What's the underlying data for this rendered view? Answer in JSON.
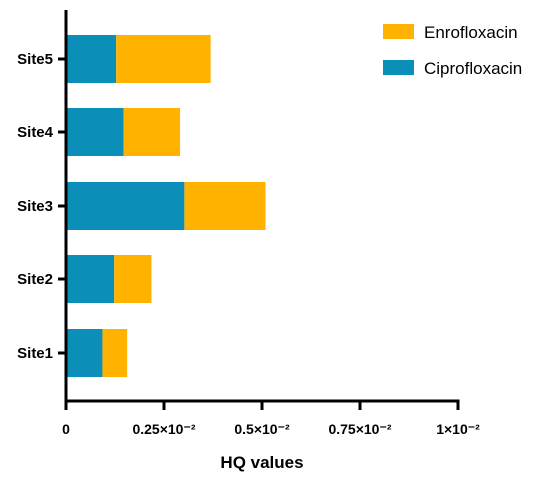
{
  "chart_data": {
    "type": "bar",
    "orientation": "horizontal",
    "stacked": true,
    "categories": [
      "Site1",
      "Site2",
      "Site3",
      "Site4",
      "Site5"
    ],
    "series": [
      {
        "name": "Ciprofloxacin",
        "color": "#0b8fb9",
        "values": [
          0.00093,
          0.00123,
          0.00302,
          0.00147,
          0.00128
        ]
      },
      {
        "name": "Enrofloxacin",
        "color": "#ffb300",
        "values": [
          0.00063,
          0.00095,
          0.00207,
          0.00144,
          0.00241
        ]
      }
    ],
    "xlabel": "HQ values",
    "ylabel": "",
    "xlim": [
      0,
      0.01
    ],
    "xticks": [
      0,
      0.0025,
      0.005,
      0.0075,
      0.01
    ],
    "xtick_labels": [
      "0",
      "0.25×10⁻²",
      "0.5×10⁻²",
      "0.75×10⁻²",
      "1×10⁻²"
    ],
    "legend": {
      "placement": "top-right",
      "order": [
        "Enrofloxacin",
        "Ciprofloxacin"
      ]
    },
    "grid": false
  }
}
